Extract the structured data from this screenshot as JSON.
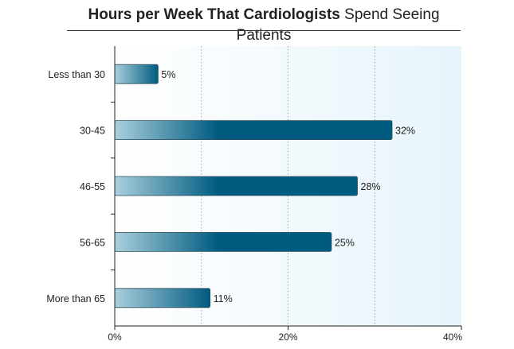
{
  "chart_data": {
    "type": "bar",
    "orientation": "horizontal",
    "title_bold": "Hours per Week That Cardiologists",
    "title_rest": "Spend Seeing Patients",
    "categories": [
      "Less than 30",
      "30-45",
      "46-55",
      "56-65",
      "More than 65"
    ],
    "values": [
      5,
      32,
      28,
      25,
      11
    ],
    "value_labels": [
      "5%",
      "32%",
      "28%",
      "25%",
      "11%"
    ],
    "xlim": [
      0,
      40
    ],
    "xticks": [
      0,
      20,
      40
    ],
    "xtick_labels": [
      "0%",
      "20%",
      "40%"
    ],
    "gridlines": [
      10,
      20,
      30
    ],
    "grid": true,
    "colors": {
      "bar_dark": "#005b80",
      "bar_light": "#a9cfdd",
      "plot_bg_left": "#ffffff",
      "plot_bg_right": "#e6f4fb",
      "grid": "#9aa8ae",
      "axis": "#222222"
    }
  }
}
